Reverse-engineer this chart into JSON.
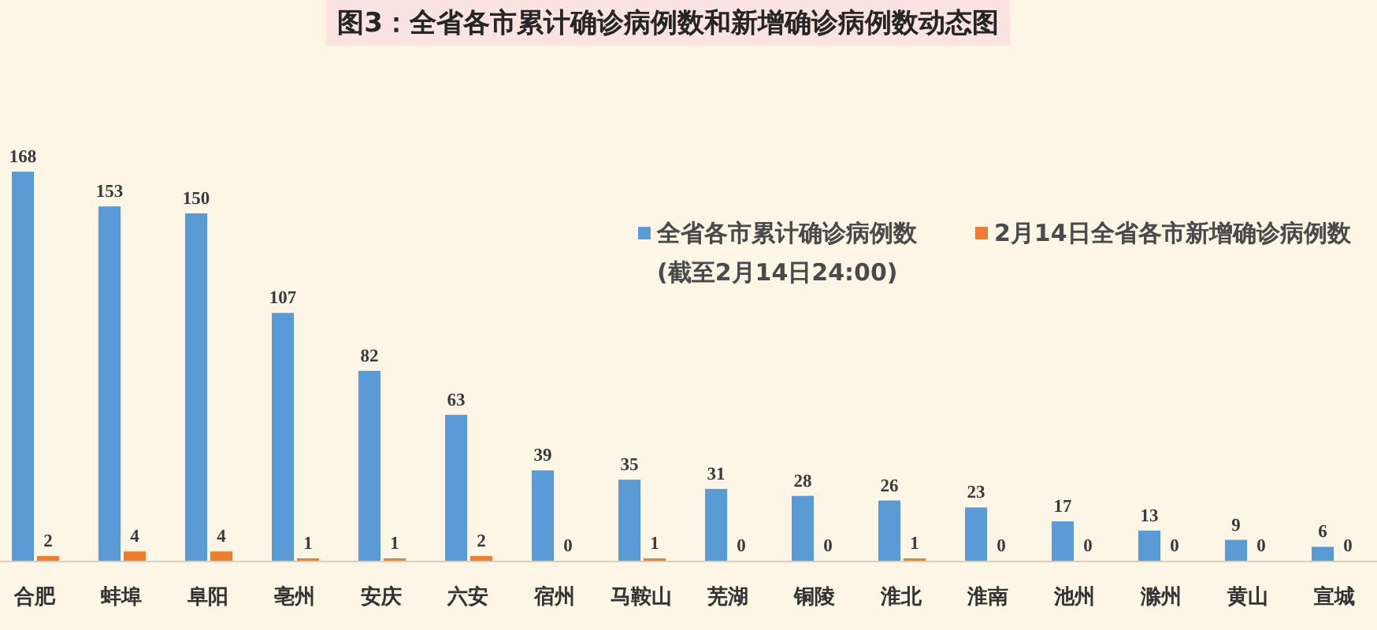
{
  "chart_data": {
    "type": "bar",
    "title": "图3：全省各市累计确诊病例数和新增确诊病例数动态图",
    "categories": [
      "合肥",
      "蚌埠",
      "阜阳",
      "亳州",
      "安庆",
      "六安",
      "宿州",
      "马鞍山",
      "芜湖",
      "铜陵",
      "淮北",
      "淮南",
      "池州",
      "滁州",
      "黄山",
      "宣城"
    ],
    "series": [
      {
        "name": "全省各市累计确诊病例数\n(截至2月14日24:00)",
        "color": "#5b9bd5",
        "values": [
          168,
          153,
          150,
          107,
          82,
          63,
          39,
          35,
          31,
          28,
          26,
          23,
          17,
          13,
          9,
          6
        ]
      },
      {
        "name": "2月14日全省各市新增确诊病例数",
        "color": "#ed7d31",
        "values": [
          2,
          4,
          4,
          1,
          1,
          2,
          0,
          1,
          0,
          0,
          1,
          0,
          0,
          0,
          0,
          0
        ]
      }
    ],
    "data_labels": true,
    "legend": "top right"
  }
}
